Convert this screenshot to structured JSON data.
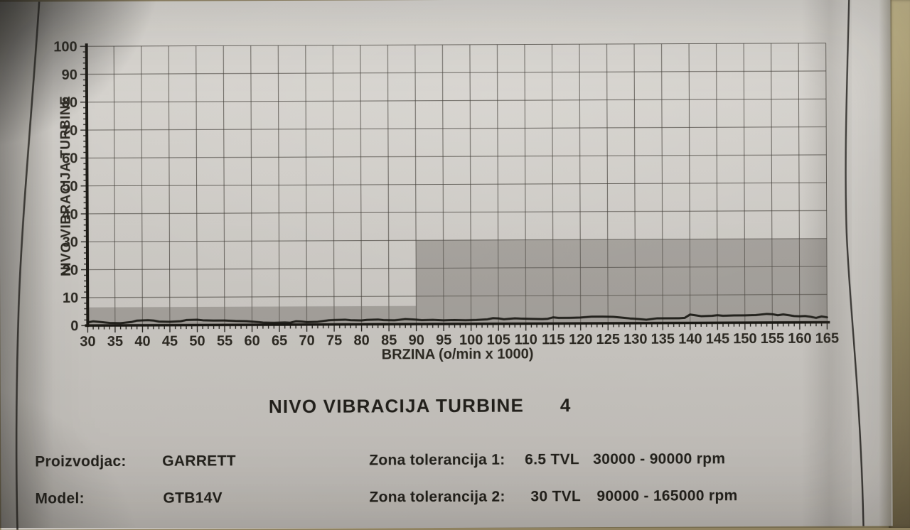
{
  "chart_data": {
    "type": "line",
    "title": "NIVO VIBRACIJA TURBINE",
    "chart_number": "4",
    "xlabel": "BRZINA (o/min x 1000)",
    "ylabel": "NIVO VIBRACIJA TURBINE",
    "xlim": [
      30,
      165
    ],
    "ylim": [
      0,
      100
    ],
    "x_tick_step": 5,
    "y_tick_step": 10,
    "x_minor_step": 1,
    "y_minor_step": 2,
    "grid": true,
    "legend": "none",
    "tolerance_zones": [
      {
        "name": "Zona tolerancija 1",
        "x_start": 30,
        "x_end": 90,
        "level_tvl": 6.5
      },
      {
        "name": "Zona tolerancija 2",
        "x_start": 90,
        "x_end": 165,
        "level_tvl": 30
      }
    ],
    "series": [
      {
        "name": "turbine-vibration-trace",
        "points": [
          [
            30,
            1.1
          ],
          [
            31,
            1.5
          ],
          [
            32,
            1.3
          ],
          [
            34,
            0.9
          ],
          [
            36,
            0.8
          ],
          [
            38,
            1.2
          ],
          [
            39,
            1.7
          ],
          [
            41,
            1.8
          ],
          [
            42,
            1.7
          ],
          [
            43,
            1.3
          ],
          [
            45,
            1.2
          ],
          [
            47,
            1.4
          ],
          [
            48,
            1.8
          ],
          [
            50,
            1.9
          ],
          [
            51,
            1.7
          ],
          [
            53,
            1.6
          ],
          [
            55,
            1.6
          ],
          [
            57,
            1.4
          ],
          [
            59,
            1.3
          ],
          [
            61,
            1.0
          ],
          [
            62,
            0.8
          ],
          [
            64,
            0.7
          ],
          [
            66,
            0.8
          ],
          [
            67,
            0.7
          ],
          [
            68,
            1.2
          ],
          [
            69,
            1.1
          ],
          [
            70,
            0.9
          ],
          [
            72,
            1.0
          ],
          [
            74,
            1.5
          ],
          [
            75,
            1.6
          ],
          [
            77,
            1.7
          ],
          [
            78,
            1.5
          ],
          [
            80,
            1.4
          ],
          [
            81,
            1.6
          ],
          [
            83,
            1.7
          ],
          [
            84,
            1.5
          ],
          [
            86,
            1.4
          ],
          [
            87,
            1.6
          ],
          [
            88,
            1.8
          ],
          [
            90,
            1.6
          ],
          [
            91,
            1.4
          ],
          [
            93,
            1.5
          ],
          [
            95,
            1.3
          ],
          [
            97,
            1.4
          ],
          [
            99,
            1.3
          ],
          [
            101,
            1.4
          ],
          [
            103,
            1.6
          ],
          [
            104,
            2.0
          ],
          [
            105,
            1.9
          ],
          [
            106,
            1.6
          ],
          [
            108,
            1.9
          ],
          [
            109,
            1.8
          ],
          [
            111,
            1.7
          ],
          [
            113,
            1.6
          ],
          [
            114,
            1.7
          ],
          [
            115,
            2.2
          ],
          [
            116,
            2.0
          ],
          [
            118,
            2.0
          ],
          [
            120,
            2.1
          ],
          [
            122,
            2.4
          ],
          [
            124,
            2.4
          ],
          [
            126,
            2.3
          ],
          [
            128,
            1.9
          ],
          [
            129,
            1.7
          ],
          [
            131,
            1.4
          ],
          [
            132,
            1.2
          ],
          [
            134,
            1.7
          ],
          [
            136,
            1.7
          ],
          [
            138,
            1.7
          ],
          [
            139,
            1.8
          ],
          [
            140,
            3.0
          ],
          [
            141,
            2.7
          ],
          [
            142,
            2.4
          ],
          [
            144,
            2.5
          ],
          [
            145,
            2.7
          ],
          [
            146,
            2.5
          ],
          [
            148,
            2.6
          ],
          [
            150,
            2.6
          ],
          [
            152,
            2.7
          ],
          [
            154,
            3.1
          ],
          [
            155,
            3.0
          ],
          [
            156,
            2.6
          ],
          [
            157,
            2.9
          ],
          [
            158,
            2.6
          ],
          [
            159,
            2.3
          ],
          [
            160,
            2.2
          ],
          [
            161,
            2.3
          ],
          [
            162,
            2.0
          ],
          [
            163,
            1.6
          ],
          [
            164,
            2.1
          ],
          [
            165,
            1.8
          ]
        ]
      }
    ]
  },
  "footer": {
    "manufacturer_label": "Proizvodjac:",
    "manufacturer_value": "GARRETT",
    "model_label": "Model:",
    "model_value": "GTB14V",
    "zone1_label": "Zona tolerancija 1:",
    "zone1_tvl": "6.5 TVL",
    "zone1_range": "30000 - 90000 rpm",
    "zone2_label": "Zona tolerancija 2:",
    "zone2_tvl": "30 TVL",
    "zone2_range": "90000 - 165000 rpm"
  },
  "colors": {
    "paper": "#d2cfca",
    "ink": "#22201b",
    "grid_line": "#3e3a34",
    "tolerance_zone_fill": "#a9a6a0",
    "trace_line": "#14120e",
    "table_surface": "#ab9d72"
  }
}
